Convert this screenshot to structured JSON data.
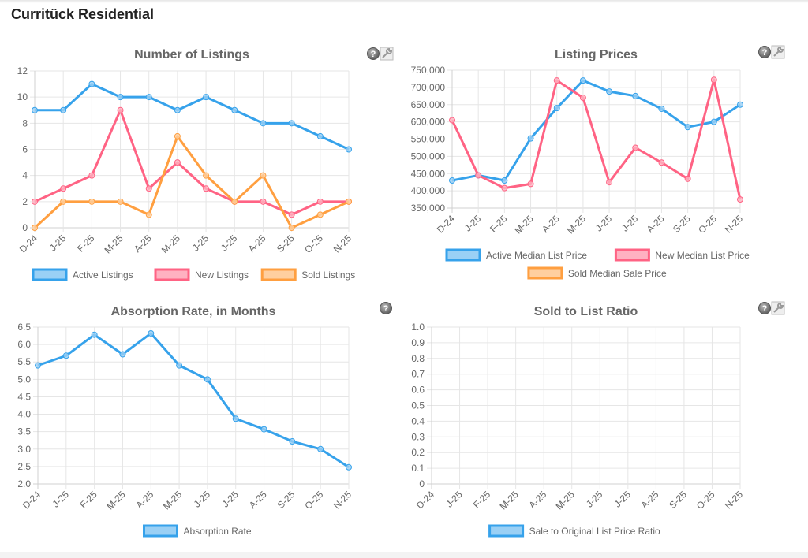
{
  "page": {
    "title": "Curritück Residential"
  },
  "icons": {
    "help": "?",
    "help_name": "help-icon",
    "tool_name": "wrench-icon"
  },
  "colors": {
    "blue": "#36a2eb",
    "pink": "#ff6384",
    "orange": "#ff9f40",
    "grid": "#e6e6e6",
    "text": "#666666"
  },
  "chart_data": [
    {
      "id": "listings",
      "type": "line",
      "title": "Number of Listings",
      "categories": [
        "D-24",
        "J-25",
        "F-25",
        "M-25",
        "A-25",
        "M-25",
        "J-25",
        "J-25",
        "A-25",
        "S-25",
        "O-25",
        "N-25"
      ],
      "ylim": [
        0,
        12
      ],
      "yticks": [
        0,
        2,
        4,
        6,
        8,
        10,
        12
      ],
      "ytick_labels": [
        "0",
        "2",
        "4",
        "6",
        "8",
        "10",
        "12"
      ],
      "grid": true,
      "legend": "bottom",
      "series": [
        {
          "name": "Active Listings",
          "color": "#36a2eb",
          "fill": "#9ad0f5",
          "values": [
            9,
            9,
            11,
            10,
            10,
            9,
            10,
            9,
            8,
            8,
            7,
            6
          ]
        },
        {
          "name": "New Listings",
          "color": "#ff6384",
          "fill": "#ffb1c1",
          "values": [
            2,
            3,
            4,
            9,
            3,
            5,
            3,
            2,
            2,
            1,
            2,
            2
          ]
        },
        {
          "name": "Sold Listings",
          "color": "#ff9f40",
          "fill": "#ffcf9f",
          "values": [
            0,
            2,
            2,
            2,
            1,
            7,
            4,
            2,
            4,
            0,
            1,
            2
          ]
        }
      ],
      "has_tool_icon": true
    },
    {
      "id": "prices",
      "type": "line",
      "title": "Listing Prices",
      "categories": [
        "D-24",
        "J-25",
        "F-25",
        "M-25",
        "A-25",
        "M-25",
        "J-25",
        "J-25",
        "A-25",
        "S-25",
        "O-25",
        "N-25"
      ],
      "ylim": [
        350000,
        750000
      ],
      "yticks": [
        350000,
        400000,
        450000,
        500000,
        550000,
        600000,
        650000,
        700000,
        750000
      ],
      "ytick_labels": [
        "350,000",
        "400,000",
        "450,000",
        "500,000",
        "550,000",
        "600,000",
        "650,000",
        "700,000",
        "750,000"
      ],
      "grid": true,
      "legend": "bottom",
      "series": [
        {
          "name": "Active Median List Price",
          "color": "#36a2eb",
          "fill": "#9ad0f5",
          "values": [
            430000,
            445000,
            430000,
            552000,
            640000,
            720000,
            688000,
            675000,
            638000,
            585000,
            600000,
            650000
          ]
        },
        {
          "name": "New Median List Price",
          "color": "#ff6384",
          "fill": "#ffb1c1",
          "values": [
            605000,
            445000,
            408000,
            420000,
            720000,
            670000,
            425000,
            525000,
            482000,
            435000,
            722000,
            375000
          ]
        },
        {
          "name": "Sold Median Sale Price",
          "color": "#ff9f40",
          "fill": "#ffcf9f",
          "values": []
        }
      ],
      "has_tool_icon": true
    },
    {
      "id": "absorption",
      "type": "line",
      "title": "Absorption Rate, in Months",
      "categories": [
        "D-24",
        "J-25",
        "F-25",
        "M-25",
        "A-25",
        "M-25",
        "J-25",
        "J-25",
        "A-25",
        "S-25",
        "O-25",
        "N-25"
      ],
      "ylim": [
        2.0,
        6.5
      ],
      "yticks": [
        2.0,
        2.5,
        3.0,
        3.5,
        4.0,
        4.5,
        5.0,
        5.5,
        6.0,
        6.5
      ],
      "ytick_labels": [
        "2.0",
        "2.5",
        "3.0",
        "3.5",
        "4.0",
        "4.5",
        "5.0",
        "5.5",
        "6.0",
        "6.5"
      ],
      "grid": true,
      "legend": "bottom",
      "series": [
        {
          "name": "Absorption Rate",
          "color": "#36a2eb",
          "fill": "#9ad0f5",
          "values": [
            5.4,
            5.68,
            6.28,
            5.72,
            6.32,
            5.4,
            5.0,
            3.87,
            3.57,
            3.22,
            3.0,
            2.48
          ]
        }
      ],
      "has_tool_icon": false
    },
    {
      "id": "ratio",
      "type": "line",
      "title": "Sold to List Ratio",
      "categories": [
        "D-24",
        "J-25",
        "F-25",
        "M-25",
        "A-25",
        "M-25",
        "J-25",
        "J-25",
        "A-25",
        "S-25",
        "O-25",
        "N-25"
      ],
      "ylim": [
        0,
        1.0
      ],
      "yticks": [
        0,
        0.1,
        0.2,
        0.3,
        0.4,
        0.5,
        0.6,
        0.7,
        0.8,
        0.9,
        1.0
      ],
      "ytick_labels": [
        "0",
        "0.1",
        "0.2",
        "0.3",
        "0.4",
        "0.5",
        "0.6",
        "0.7",
        "0.8",
        "0.9",
        "1.0"
      ],
      "grid": true,
      "legend": "bottom",
      "series": [
        {
          "name": "Sale to Original List Price Ratio",
          "color": "#36a2eb",
          "fill": "#9ad0f5",
          "values": []
        }
      ],
      "has_tool_icon": true
    }
  ]
}
